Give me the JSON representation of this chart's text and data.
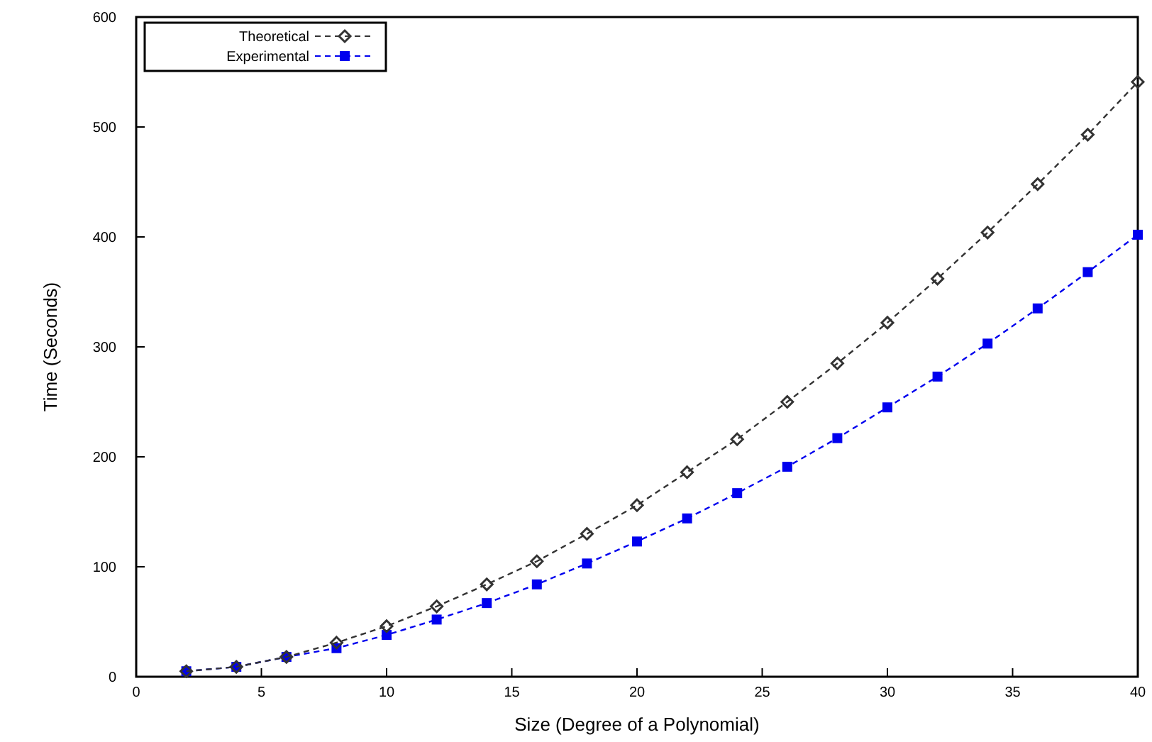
{
  "chart_data": {
    "type": "line",
    "xlabel": "Size (Degree of a Polynomial)",
    "ylabel": "Time (Seconds)",
    "x": [
      2,
      4,
      6,
      8,
      10,
      12,
      14,
      16,
      18,
      20,
      22,
      24,
      26,
      28,
      30,
      32,
      34,
      36,
      38,
      40
    ],
    "series": [
      {
        "name": "Theoretical",
        "color": "#333333",
        "marker": "diamond",
        "values": [
          5,
          9,
          18,
          31,
          46,
          64,
          84,
          105,
          130,
          156,
          186,
          216,
          250,
          285,
          322,
          362,
          404,
          448,
          493,
          541
        ]
      },
      {
        "name": "Experimental",
        "color": "#0000ee",
        "marker": "square",
        "values": [
          5,
          9,
          18,
          26,
          38,
          52,
          67,
          84,
          103,
          123,
          144,
          167,
          191,
          217,
          245,
          273,
          303,
          335,
          368,
          402
        ]
      }
    ],
    "xlim": [
      0,
      40
    ],
    "xticks": [
      0,
      5,
      10,
      15,
      20,
      25,
      30,
      35,
      40
    ],
    "ylim": [
      0,
      600
    ],
    "yticks": [
      0,
      100,
      200,
      300,
      400,
      500,
      600
    ],
    "grid": false,
    "legend": "top left",
    "line_style": "dashed"
  }
}
